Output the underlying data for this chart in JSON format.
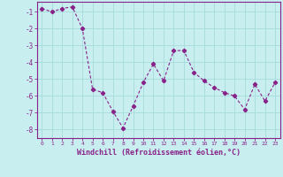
{
  "x": [
    0,
    1,
    2,
    3,
    4,
    5,
    6,
    7,
    8,
    9,
    10,
    11,
    12,
    13,
    14,
    15,
    16,
    17,
    18,
    19,
    20,
    21,
    22,
    23
  ],
  "y": [
    -0.8,
    -1.0,
    -0.8,
    -0.7,
    -2.0,
    -5.6,
    -5.8,
    -6.9,
    -7.9,
    -6.6,
    -5.2,
    -4.1,
    -5.1,
    -3.3,
    -3.3,
    -4.6,
    -5.1,
    -5.5,
    -5.8,
    -6.0,
    -6.8,
    -5.3,
    -6.3,
    -5.2
  ],
  "line_color": "#882288",
  "marker": "D",
  "marker_size": 2.2,
  "bg_color": "#c8eef0",
  "grid_color": "#aadddd",
  "xlabel": "Windchill (Refroidissement éolien,°C)",
  "xlabel_color": "#882288",
  "ylim": [
    -8.5,
    -0.4
  ],
  "xlim": [
    -0.5,
    23.5
  ],
  "yticks": [
    -8,
    -7,
    -6,
    -5,
    -4,
    -3,
    -2,
    -1
  ],
  "xtick_labels": [
    "0",
    "1",
    "2",
    "3",
    "4",
    "5",
    "6",
    "7",
    "8",
    "9",
    "10",
    "11",
    "12",
    "13",
    "14",
    "15",
    "16",
    "17",
    "18",
    "19",
    "20",
    "21",
    "22",
    "23"
  ],
  "tick_color": "#882288",
  "spine_color": "#882288",
  "figsize": [
    3.2,
    2.0
  ],
  "dpi": 100
}
